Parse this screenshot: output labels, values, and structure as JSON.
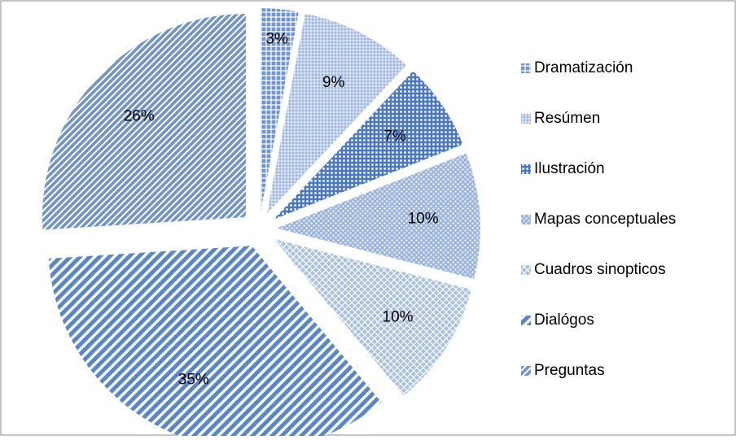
{
  "chart_data": {
    "type": "pie",
    "categories": [
      "Dramatización",
      "Resúmen",
      "Ilustración",
      "Mapas conceptuales",
      "Cuadros sinopticos",
      "Dialógos",
      "Preguntas"
    ],
    "values": [
      3,
      9,
      7,
      10,
      10,
      35,
      26
    ],
    "value_labels": [
      "3%",
      "9%",
      "7%",
      "10%",
      "10%",
      "35%",
      "26%"
    ],
    "colors": [
      "#6f95cc",
      "#9ab4dc",
      "#4a78c0",
      "#9ab4dc",
      "#a9c0e2",
      "#5b87c8",
      "#6f95cc"
    ],
    "legend": "right"
  }
}
